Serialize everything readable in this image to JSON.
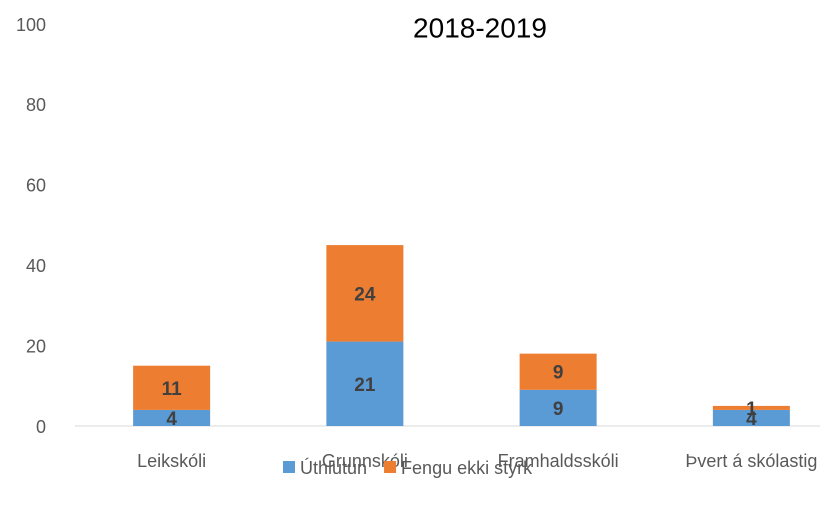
{
  "chart_data": {
    "type": "stacked_bar",
    "title": "2018-2019",
    "categories": [
      "Leikskóli",
      "Grunnskóli",
      "Framhaldsskóli",
      "Þvert á skólastig"
    ],
    "series": [
      {
        "name": "Úthlutun",
        "color": "#5b9bd5",
        "values": [
          4,
          21,
          9,
          4
        ]
      },
      {
        "name": "Fengu ekki styrk",
        "color": "#ed7d31",
        "values": [
          11,
          24,
          9,
          1
        ]
      }
    ],
    "ylim": [
      0,
      100
    ],
    "yticks": [
      0,
      20,
      40,
      60,
      80,
      100
    ],
    "grid": false,
    "legend": "bottom"
  }
}
